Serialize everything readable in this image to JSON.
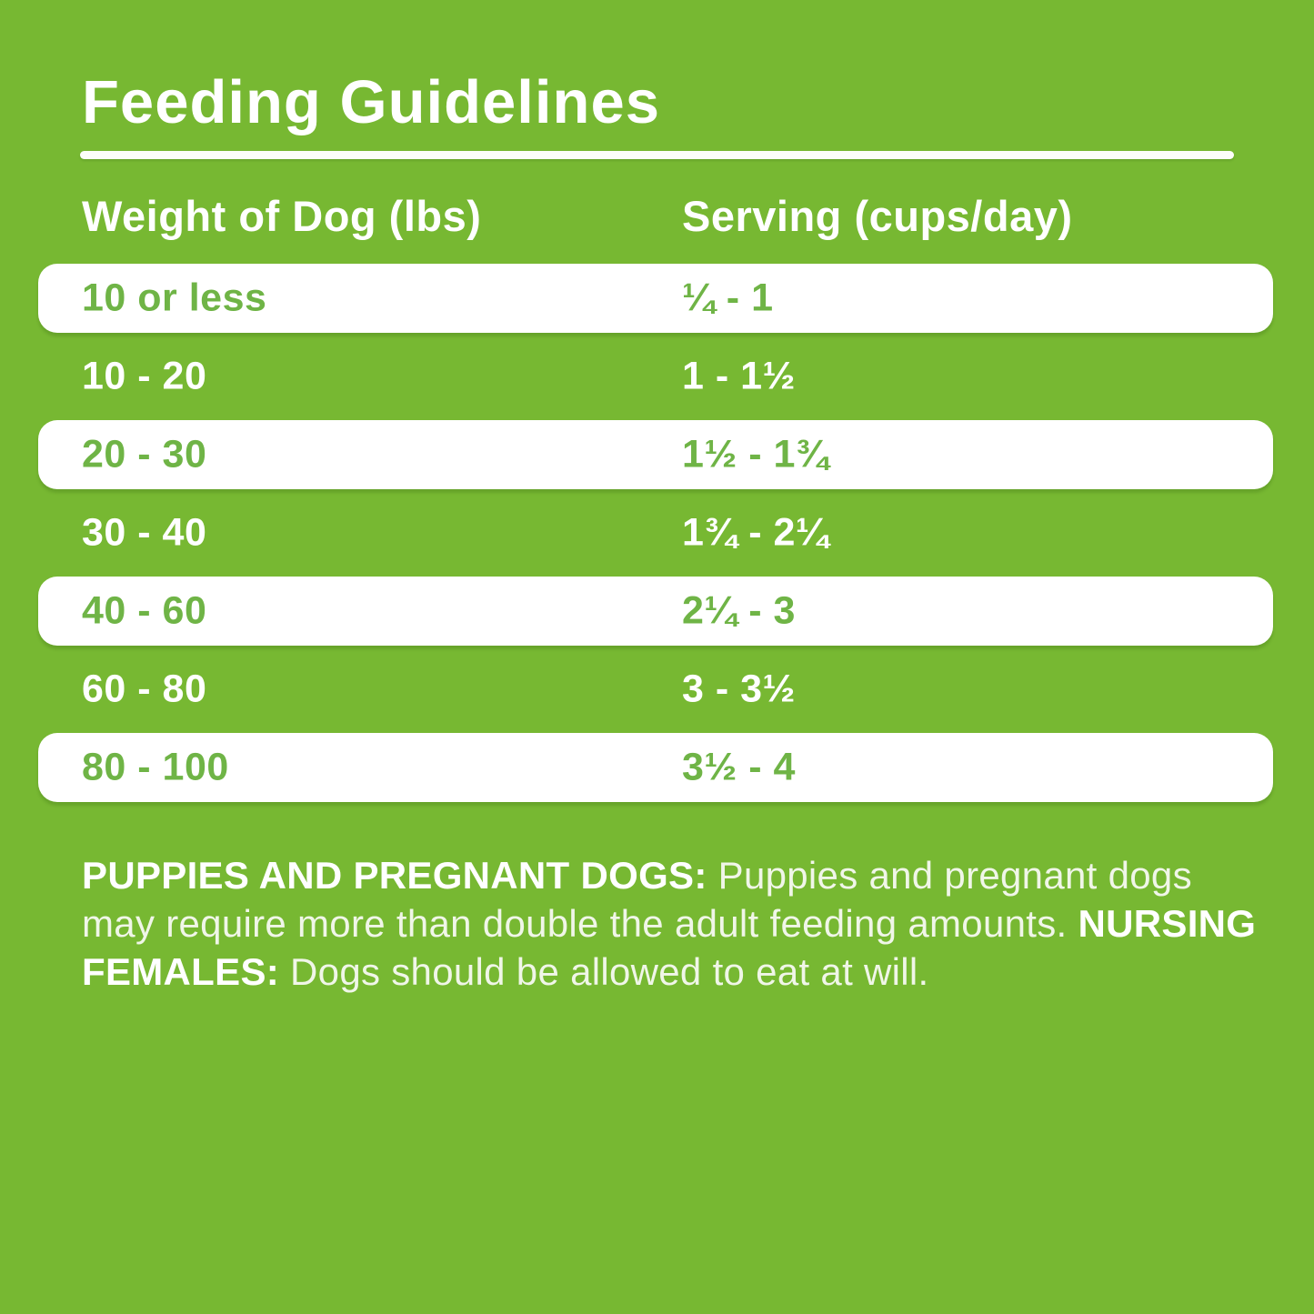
{
  "title": "Feeding Guidelines",
  "table": {
    "headers": [
      "Weight of Dog (lbs)",
      "Serving (cups/day)"
    ],
    "rows": [
      {
        "weight": "10 or less",
        "serving": "¼ - 1"
      },
      {
        "weight": "10 - 20",
        "serving": "1 - 1½"
      },
      {
        "weight": "20 - 30",
        "serving": "1½ - 1¾"
      },
      {
        "weight": "30 - 40",
        "serving": "1¾ - 2¼"
      },
      {
        "weight": "40 - 60",
        "serving": "2¼ - 3"
      },
      {
        "weight": "60 - 80",
        "serving": "3 - 3½"
      },
      {
        "weight": "80 - 100",
        "serving": "3½ - 4"
      }
    ]
  },
  "note": {
    "puppies_label": "PUPPIES AND PREGNANT DOGS:",
    "puppies_text": " Puppies and pregnant dogs may require more than double the adult feeding amounts. ",
    "nursing_label": "NURSING FEMALES:",
    "nursing_text": " Dogs should be allowed to eat at will."
  },
  "colors": {
    "background_green": "#77b832",
    "row_bar_white": "#ffffff",
    "row_text_green": "#6fb446",
    "text_white": "#ffffff",
    "note_text": "#f0f6e8"
  }
}
